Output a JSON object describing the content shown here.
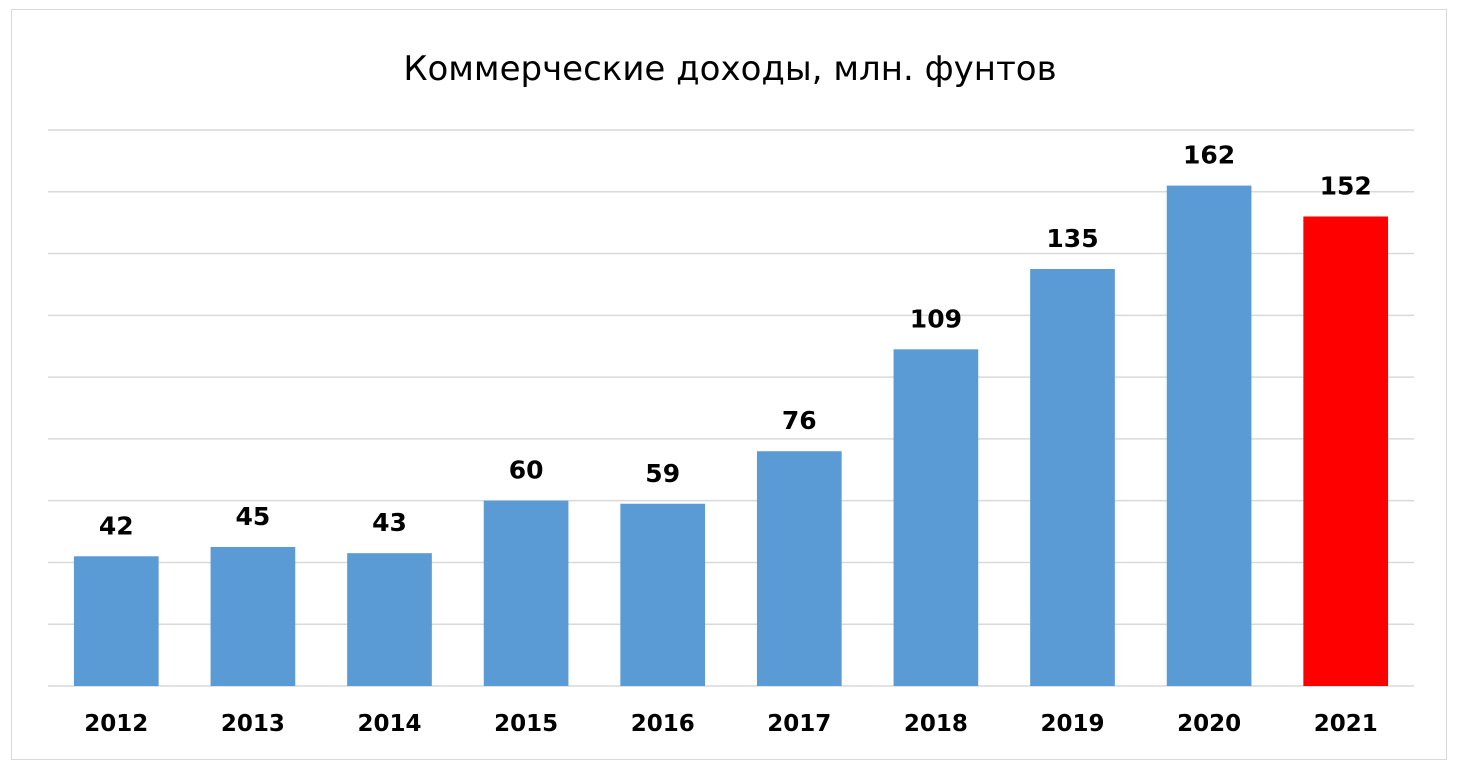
{
  "chart_data": {
    "type": "bar",
    "title": "Коммерческие доходы, млн. фунтов",
    "categories": [
      "2012",
      "2013",
      "2014",
      "2015",
      "2016",
      "2017",
      "2018",
      "2019",
      "2020",
      "2021"
    ],
    "values": [
      42,
      45,
      43,
      60,
      59,
      76,
      109,
      135,
      162,
      152
    ],
    "data_labels": [
      "42",
      "45",
      "43",
      "60",
      "59",
      "76",
      "109",
      "135",
      "162",
      "152"
    ],
    "ylim": [
      0,
      180
    ],
    "grid_step": 20,
    "grid": true,
    "y_tick_labels_visible": false,
    "legend": "none",
    "bar_color": "#5b9bd5",
    "highlight_color": "#ff0000",
    "highlight_category": "2021",
    "grid_color": "#d9d9d9"
  }
}
